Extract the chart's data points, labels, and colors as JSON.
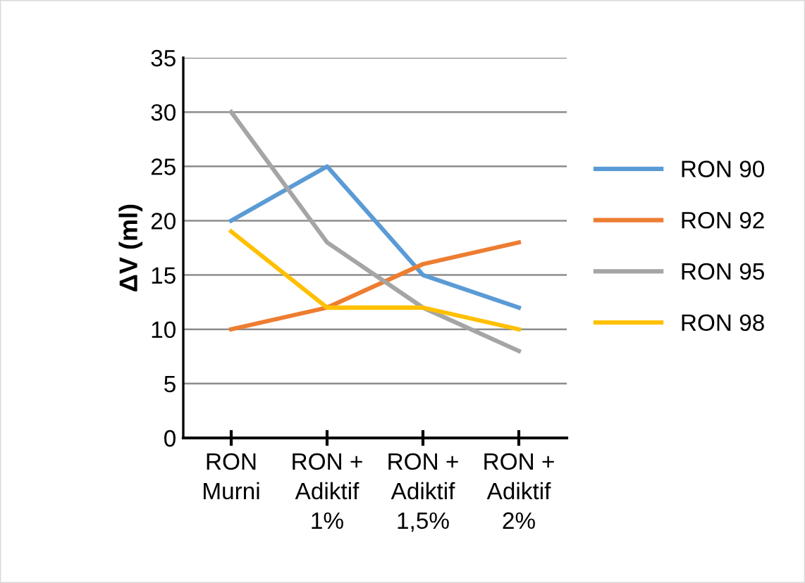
{
  "chart_data": {
    "type": "line",
    "ylabel": "ΔV (ml)",
    "categories": [
      "RON\nMurni",
      "RON +\nAdiktif\n1%",
      "RON +\nAdiktif\n1,5%",
      "RON +\nAdiktif\n2%"
    ],
    "series": [
      {
        "name": "RON 90",
        "color": "#5b9bd5",
        "values": [
          20,
          25,
          15,
          12
        ]
      },
      {
        "name": "RON 92",
        "color": "#ed7d31",
        "values": [
          10,
          12,
          16,
          18
        ]
      },
      {
        "name": "RON 95",
        "color": "#a5a5a5",
        "values": [
          30,
          18,
          12,
          8
        ]
      },
      {
        "name": "RON 98",
        "color": "#ffc000",
        "values": [
          19,
          12,
          12,
          10
        ]
      }
    ],
    "ylim": [
      0,
      35
    ],
    "yticks": [
      0,
      5,
      10,
      15,
      20,
      25,
      30,
      35
    ],
    "grid": "y",
    "legend": "right",
    "marker": "none",
    "line_style": "solid"
  }
}
